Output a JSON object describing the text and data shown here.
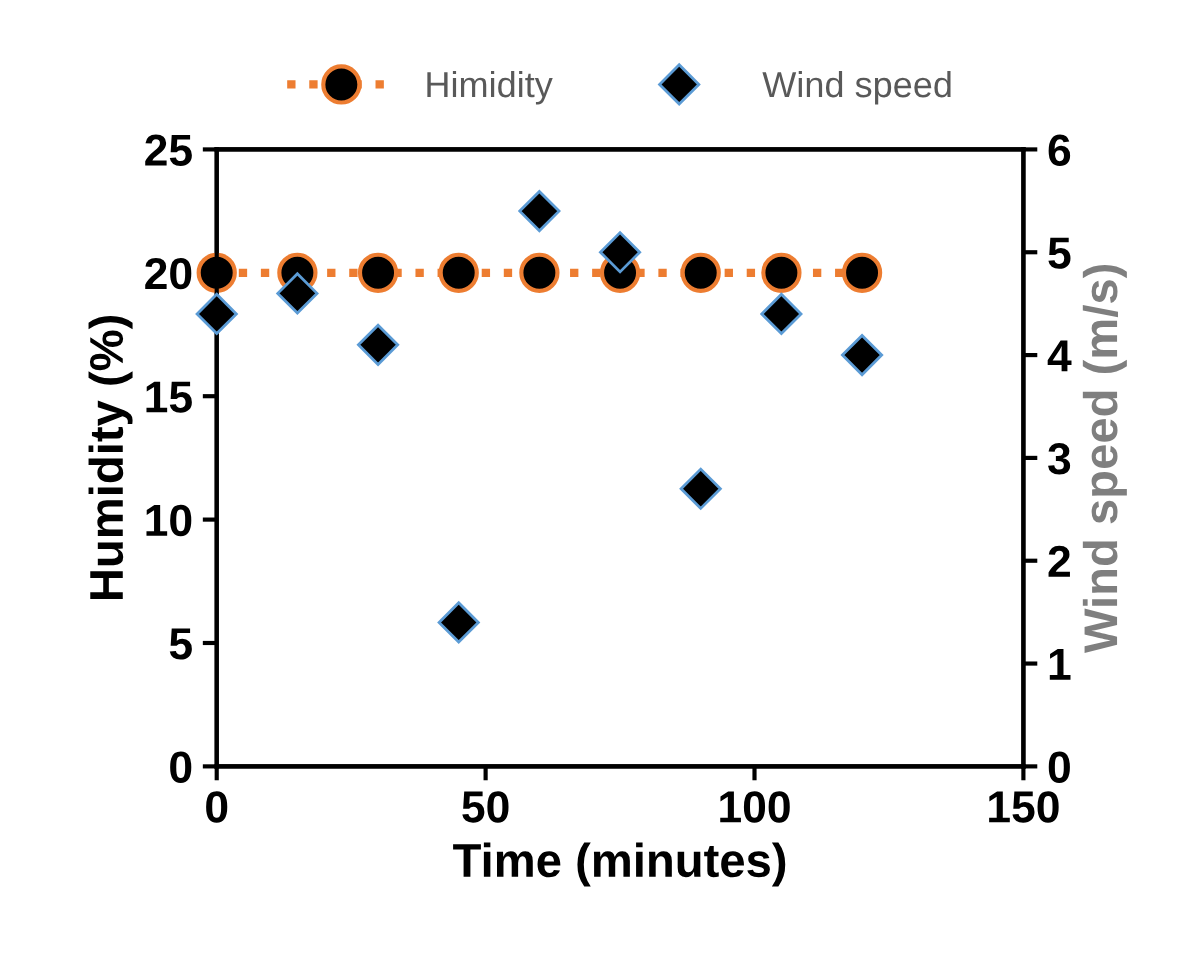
{
  "chart_data": {
    "type": "line",
    "xlabel": "Time (minutes)",
    "ylabel": "Humidity (%)",
    "y2label": "Wind speed (m/s)",
    "x": [
      0,
      15,
      30,
      45,
      60,
      75,
      90,
      105,
      120
    ],
    "series": [
      {
        "name": "Himidity",
        "color": "#ed7d31",
        "marker": "circle",
        "line_style": "dotted",
        "values": [
          20,
          20,
          20,
          20,
          20,
          20,
          20,
          20,
          20
        ]
      },
      {
        "name": "Wind speed",
        "color": "#5b9bd5",
        "type": "scatter",
        "marker": "diamond",
        "axis": "y2",
        "values": [
          4.4,
          4.6,
          4.1,
          1.4,
          5.4,
          5.0,
          2.7,
          4.4,
          4.0
        ]
      }
    ],
    "xlim": [
      0,
      150
    ],
    "xticks": [
      0,
      50,
      100,
      150
    ],
    "ylim": [
      0,
      25
    ],
    "yticks": [
      0,
      5,
      10,
      15,
      20,
      25
    ],
    "y2lim": [
      0,
      6
    ],
    "y2ticks": [
      0,
      1,
      2,
      3,
      4,
      5,
      6
    ],
    "grid": false,
    "legend": "top"
  }
}
